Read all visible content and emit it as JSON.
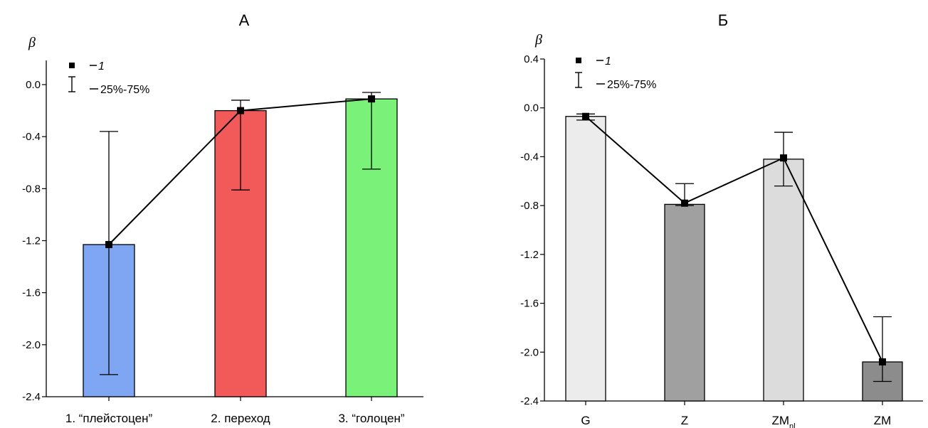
{
  "chart_data": [
    {
      "panel": "A",
      "type": "bar",
      "title": "А",
      "ylabel": "β",
      "ylim": [
        -2.4,
        0.0
      ],
      "yticks": [
        "0.0",
        "-0.4",
        "-0.8",
        "-1.2",
        "-1.6",
        "-2.0",
        "-2.4"
      ],
      "yticks_values": [
        0.0,
        -0.4,
        -0.8,
        -1.2,
        -1.6,
        -2.0,
        -2.4
      ],
      "categories": [
        "1. “плейстоцен”",
        "2. переход",
        "3. “голоцен”"
      ],
      "bar_values": [
        -1.23,
        -0.2,
        -0.11
      ],
      "bar_colors": [
        "#7ea6f2",
        "#f25a5a",
        "#7af27a"
      ],
      "line_values": [
        -1.23,
        -0.2,
        -0.11
      ],
      "error_low": [
        -2.23,
        -0.81,
        -0.65
      ],
      "error_high": [
        -0.36,
        -0.12,
        -0.06
      ],
      "legend": {
        "marker_label": "1",
        "error_label": "25%-75%",
        "placement": "top-left"
      }
    },
    {
      "panel": "Б",
      "type": "bar",
      "title": "Б",
      "ylabel": "β",
      "ylim": [
        -2.4,
        0.4
      ],
      "yticks": [
        "0.4",
        "0.0",
        "-0.4",
        "-0.8",
        "-1.2",
        "-1.6",
        "-2.0",
        "-2.4"
      ],
      "yticks_values": [
        0.4,
        0.0,
        -0.4,
        -0.8,
        -1.2,
        -1.6,
        -2.0,
        -2.4
      ],
      "categories": [
        "G",
        "Z",
        "ZM",
        "ZM"
      ],
      "category_subscripts": [
        "",
        "",
        "nl",
        ""
      ],
      "bar_values": [
        -0.07,
        -0.79,
        -0.42,
        -2.08
      ],
      "bar_colors": [
        "#ececec",
        "#a0a0a0",
        "#dcdcdc",
        "#8c8c8c"
      ],
      "line_values": [
        -0.07,
        -0.78,
        -0.41,
        -2.08
      ],
      "error_low": [
        -0.1,
        -0.8,
        -0.64,
        -2.24
      ],
      "error_high": [
        -0.05,
        -0.62,
        -0.2,
        -1.71
      ],
      "legend": {
        "marker_label": "1",
        "error_label": "25%-75%",
        "placement": "top-left"
      }
    }
  ]
}
